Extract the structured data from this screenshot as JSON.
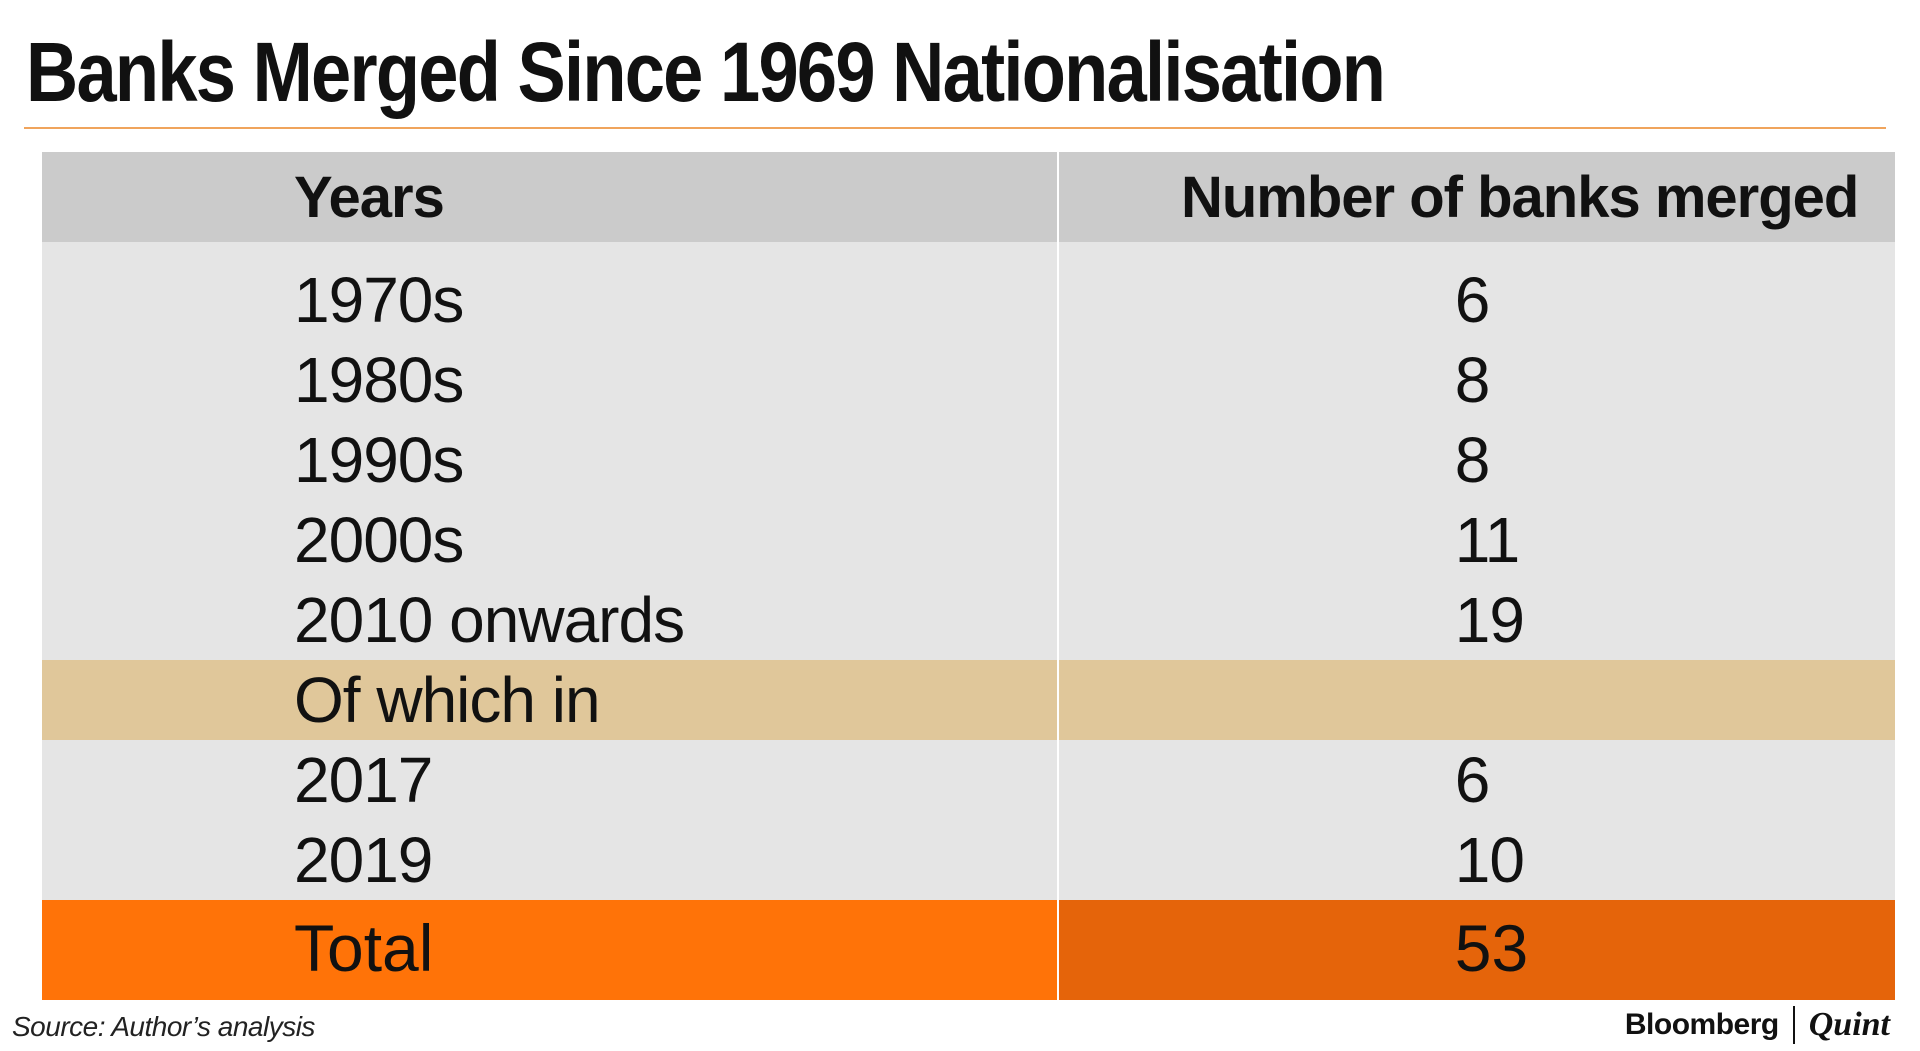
{
  "colors": {
    "title_rule": "#f0a45c",
    "header_bg": "#cbcbcb",
    "body_bg": "#e5e5e5",
    "band_bg": "#e0c79a",
    "total_years_bg": "#ff7308",
    "total_num_bg": "#e5640a",
    "text": "#111111"
  },
  "chart_data": {
    "type": "table",
    "title": "Banks Merged Since 1969 Nationalisation",
    "columns": [
      "Years",
      "Number of banks merged"
    ],
    "rows": [
      {
        "years": "1970s",
        "count": "6"
      },
      {
        "years": "1980s",
        "count": "8"
      },
      {
        "years": "1990s",
        "count": "8"
      },
      {
        "years": "2000s",
        "count": "11"
      },
      {
        "years": "2010 onwards",
        "count": "19"
      }
    ],
    "subgroup_label": "Of which in",
    "subgroup_rows": [
      {
        "years": "2017",
        "count": "6"
      },
      {
        "years": "2019",
        "count": "10"
      }
    ],
    "total": {
      "label": "Total",
      "count": "53"
    },
    "source": "Source: Author’s analysis"
  },
  "branding": {
    "main": "Bloomberg",
    "sub": "Quint"
  }
}
